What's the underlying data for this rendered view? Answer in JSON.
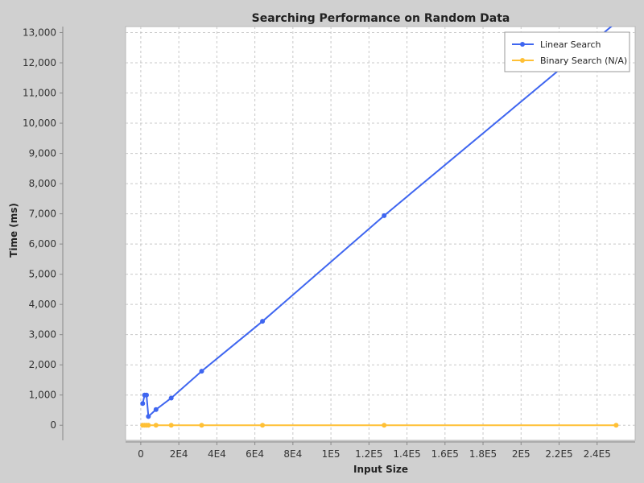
{
  "chart_data": {
    "type": "line",
    "title": "Searching Performance on Random Data",
    "xlabel": "Input Size",
    "ylabel": "Time (ms)",
    "xlim": [
      -8000,
      260000
    ],
    "ylim": [
      -500,
      13200
    ],
    "x_ticks": [
      0,
      20000,
      40000,
      60000,
      80000,
      100000,
      120000,
      140000,
      160000,
      180000,
      200000,
      220000,
      240000
    ],
    "x_tick_labels": [
      "0",
      "2E4",
      "4E4",
      "6E4",
      "8E4",
      "1E5",
      "1.2E5",
      "1.4E5",
      "1.6E5",
      "1.8E5",
      "2E5",
      "2.2E5",
      "2.4E5"
    ],
    "y_ticks": [
      0,
      1000,
      2000,
      3000,
      4000,
      5000,
      6000,
      7000,
      8000,
      9000,
      10000,
      11000,
      12000,
      13000
    ],
    "y_tick_labels": [
      "0",
      "1,000",
      "2,000",
      "3,000",
      "4,000",
      "5,000",
      "6,000",
      "7,000",
      "8,000",
      "9,000",
      "10,000",
      "11,000",
      "12,000",
      "13,000"
    ],
    "grid": true,
    "legend_position": "top-right",
    "series": [
      {
        "name": "Linear Search",
        "color": "#3f66f0",
        "x": [
          1000,
          2000,
          3000,
          4000,
          8000,
          16000,
          32000,
          64000,
          128000,
          256000
        ],
        "y": [
          720,
          1000,
          1000,
          290,
          520,
          900,
          1790,
          3440,
          6940,
          13650
        ]
      },
      {
        "name": "Binary Search (N/A)",
        "color": "#ffc035",
        "x": [
          1000,
          2000,
          3000,
          4000,
          8000,
          16000,
          32000,
          64000,
          128000,
          250000
        ],
        "y": [
          0,
          0,
          0,
          0,
          0,
          0,
          0,
          0,
          0,
          0
        ]
      }
    ]
  }
}
